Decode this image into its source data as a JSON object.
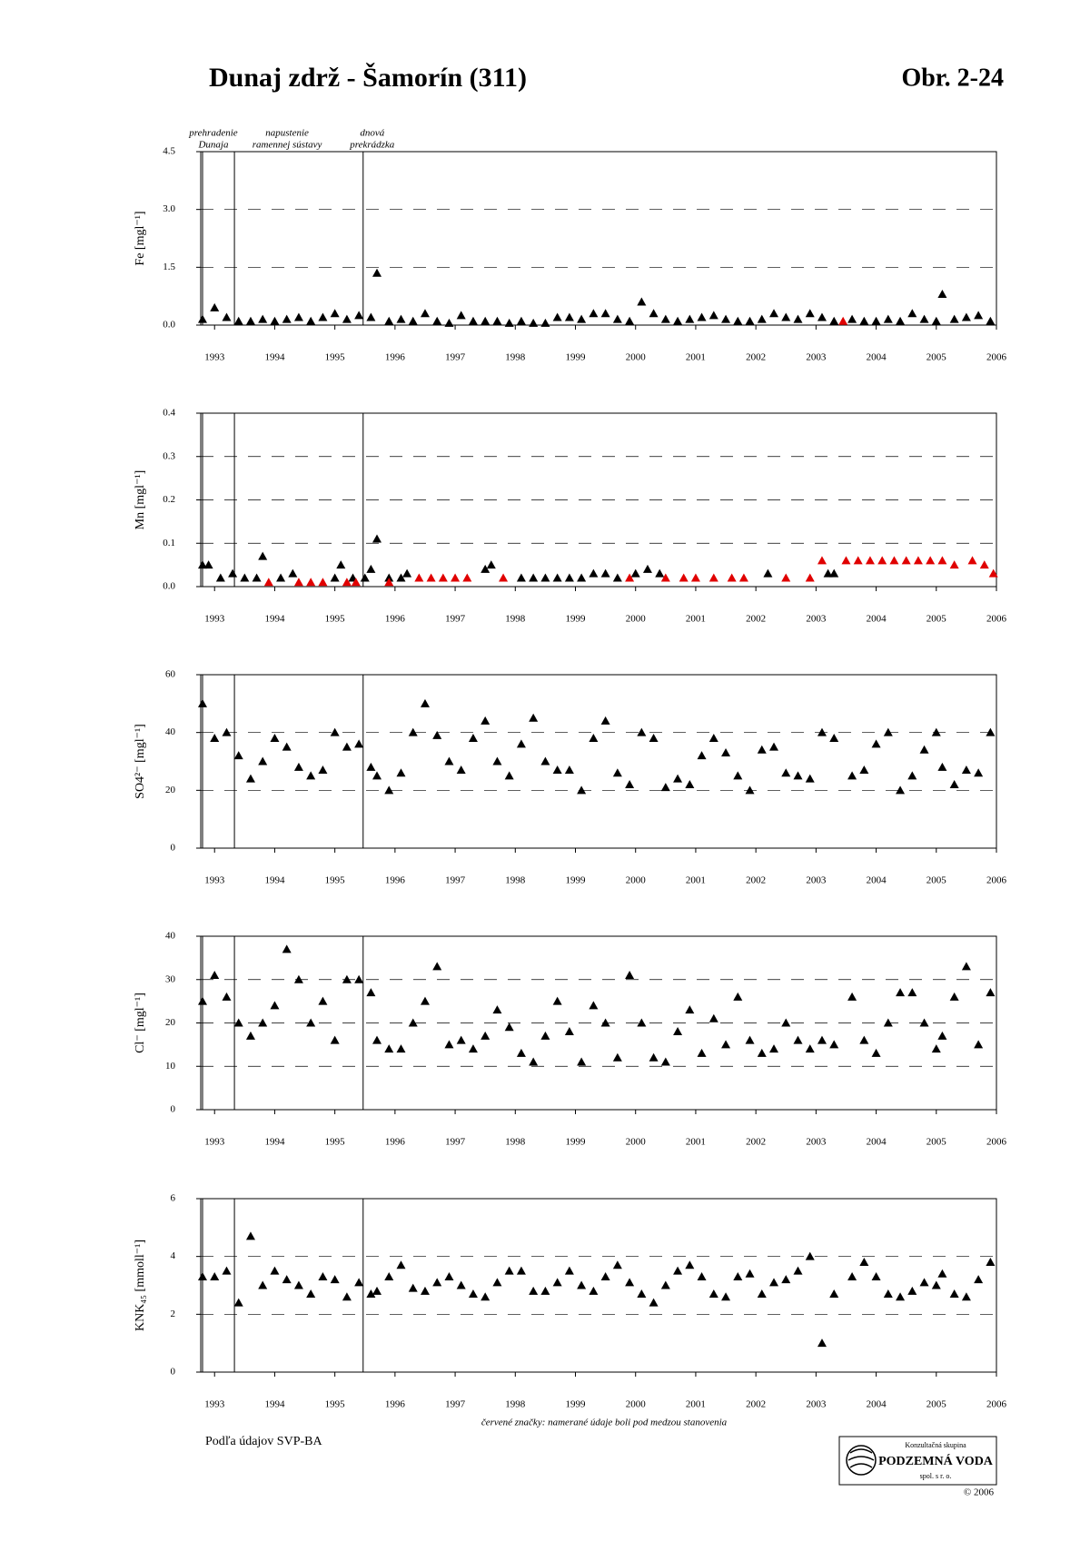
{
  "header": {
    "title": "Dunaj zdrž - Šamorín (311)",
    "figure": "Obr. 2-24"
  },
  "events": [
    {
      "x": 1992.8,
      "lines": [
        "prehradenie",
        "Dunaja"
      ]
    },
    {
      "x": 1993.33,
      "lines": [
        "napustenie",
        "ramennej sústavy"
      ]
    },
    {
      "x": 1995.47,
      "lines": [
        "dnová",
        "prekrádzka"
      ]
    }
  ],
  "chart_data": [
    {
      "type": "scatter",
      "y_label": "Fe [mgl⁻¹]",
      "xlim": [
        1992.77,
        2006
      ],
      "ylim": [
        0,
        4.5
      ],
      "xticks": [
        1993,
        1994,
        1995,
        1996,
        1997,
        1998,
        1999,
        2000,
        2001,
        2002,
        2003,
        2004,
        2005,
        2006
      ],
      "yticks": [
        {
          "value": 0,
          "label": "0.0"
        },
        1.5,
        {
          "value": 3,
          "label": "3.0"
        },
        4.5
      ],
      "grid": true,
      "series": [
        {
          "color": "#000000",
          "x": [
            1992.8,
            1993.0,
            1993.2,
            1993.4,
            1993.6,
            1993.8,
            1994.0,
            1994.2,
            1994.4,
            1994.6,
            1994.8,
            1995.0,
            1995.2,
            1995.4,
            1995.6,
            1995.7,
            1995.9,
            1996.1,
            1996.3,
            1996.5,
            1996.7,
            1996.9,
            1997.1,
            1997.3,
            1997.5,
            1997.7,
            1997.9,
            1998.1,
            1998.3,
            1998.5,
            1998.7,
            1998.9,
            1999.1,
            1999.3,
            1999.5,
            1999.7,
            1999.9,
            2000.1,
            2000.3,
            2000.5,
            2000.7,
            2000.9,
            2001.1,
            2001.3,
            2001.5,
            2001.7,
            2001.9,
            2002.1,
            2002.3,
            2002.5,
            2002.7,
            2002.9,
            2003.1,
            2003.3,
            2003.6,
            2003.8,
            2004.0,
            2004.2,
            2004.4,
            2004.6,
            2004.8,
            2005.0,
            2005.1,
            2005.3,
            2005.5,
            2005.7,
            2005.9
          ],
          "values": [
            0.15,
            0.45,
            0.2,
            0.1,
            0.1,
            0.15,
            0.1,
            0.15,
            0.2,
            0.1,
            0.2,
            0.3,
            0.15,
            0.25,
            0.2,
            1.35,
            0.1,
            0.15,
            0.1,
            0.3,
            0.1,
            0.05,
            0.25,
            0.1,
            0.1,
            0.1,
            0.05,
            0.1,
            0.05,
            0.05,
            0.2,
            0.2,
            0.15,
            0.3,
            0.3,
            0.15,
            0.1,
            0.6,
            0.3,
            0.15,
            0.1,
            0.15,
            0.2,
            0.25,
            0.15,
            0.1,
            0.1,
            0.15,
            0.3,
            0.2,
            0.15,
            0.3,
            0.2,
            0.1,
            0.15,
            0.1,
            0.1,
            0.15,
            0.1,
            0.3,
            0.15,
            0.1,
            0.8,
            0.15,
            0.2,
            0.25,
            0.1
          ]
        },
        {
          "color": "#e00000",
          "x": [
            2003.45
          ],
          "values": [
            0.1
          ]
        }
      ]
    },
    {
      "type": "scatter",
      "y_label": "Mn [mgl⁻¹]",
      "xlim": [
        1992.77,
        2006
      ],
      "ylim": [
        0,
        0.4
      ],
      "xticks": [
        1993,
        1994,
        1995,
        1996,
        1997,
        1998,
        1999,
        2000,
        2001,
        2002,
        2003,
        2004,
        2005,
        2006
      ],
      "yticks": [
        {
          "value": 0,
          "label": "0.0"
        },
        0.1,
        0.2,
        0.3,
        0.4
      ],
      "grid": true,
      "series": [
        {
          "color": "#000000",
          "x": [
            1992.8,
            1992.9,
            1993.1,
            1993.3,
            1993.5,
            1993.7,
            1993.8,
            1994.1,
            1994.3,
            1995.0,
            1995.1,
            1995.3,
            1995.5,
            1995.6,
            1995.7,
            1995.9,
            1996.1,
            1996.2,
            1997.5,
            1997.6,
            1998.1,
            1998.3,
            1998.5,
            1998.7,
            1998.9,
            1999.1,
            1999.3,
            1999.5,
            1999.7,
            2000.0,
            2000.2,
            2000.4,
            2002.2,
            2003.2,
            2003.3
          ],
          "values": [
            0.05,
            0.05,
            0.02,
            0.03,
            0.02,
            0.02,
            0.07,
            0.02,
            0.03,
            0.02,
            0.05,
            0.02,
            0.02,
            0.04,
            0.11,
            0.02,
            0.02,
            0.03,
            0.04,
            0.05,
            0.02,
            0.02,
            0.02,
            0.02,
            0.02,
            0.02,
            0.03,
            0.03,
            0.02,
            0.03,
            0.04,
            0.03,
            0.03,
            0.03,
            0.03
          ]
        },
        {
          "color": "#e00000",
          "x": [
            1993.9,
            1994.4,
            1994.6,
            1994.8,
            1995.2,
            1995.35,
            1995.9,
            1996.4,
            1996.6,
            1996.8,
            1997.0,
            1997.2,
            1997.8,
            1999.9,
            2000.5,
            2000.8,
            2001.0,
            2001.3,
            2001.6,
            2001.8,
            2002.5,
            2002.9,
            2003.1,
            2003.5,
            2003.7,
            2003.9,
            2004.1,
            2004.3,
            2004.5,
            2004.7,
            2004.9,
            2005.1,
            2005.3,
            2005.6,
            2005.8,
            2005.95
          ],
          "values": [
            0.01,
            0.01,
            0.01,
            0.01,
            0.01,
            0.01,
            0.01,
            0.02,
            0.02,
            0.02,
            0.02,
            0.02,
            0.02,
            0.02,
            0.02,
            0.02,
            0.02,
            0.02,
            0.02,
            0.02,
            0.02,
            0.02,
            0.06,
            0.06,
            0.06,
            0.06,
            0.06,
            0.06,
            0.06,
            0.06,
            0.06,
            0.06,
            0.05,
            0.06,
            0.05,
            0.03
          ]
        }
      ]
    },
    {
      "type": "scatter",
      "y_label": "SO4²⁻ [mgl⁻¹]",
      "xlim": [
        1992.77,
        2006
      ],
      "ylim": [
        0,
        60
      ],
      "xticks": [
        1993,
        1994,
        1995,
        1996,
        1997,
        1998,
        1999,
        2000,
        2001,
        2002,
        2003,
        2004,
        2005,
        2006
      ],
      "yticks": [
        0,
        20,
        40,
        60
      ],
      "grid": true,
      "series": [
        {
          "color": "#000000",
          "x": [
            1992.8,
            1993.0,
            1993.2,
            1993.4,
            1993.6,
            1993.8,
            1994.0,
            1994.2,
            1994.4,
            1994.6,
            1994.8,
            1995.0,
            1995.2,
            1995.4,
            1995.6,
            1995.7,
            1995.9,
            1996.1,
            1996.3,
            1996.5,
            1996.7,
            1996.9,
            1997.1,
            1997.3,
            1997.5,
            1997.7,
            1997.9,
            1998.1,
            1998.3,
            1998.5,
            1998.7,
            1998.9,
            1999.1,
            1999.3,
            1999.5,
            1999.7,
            1999.9,
            2000.1,
            2000.3,
            2000.5,
            2000.7,
            2000.9,
            2001.1,
            2001.3,
            2001.5,
            2001.7,
            2001.9,
            2002.1,
            2002.3,
            2002.5,
            2002.7,
            2002.9,
            2003.1,
            2003.3,
            2003.6,
            2003.8,
            2004.0,
            2004.2,
            2004.4,
            2004.6,
            2004.8,
            2005.0,
            2005.1,
            2005.3,
            2005.5,
            2005.7,
            2005.9
          ],
          "values": [
            50,
            38,
            40,
            32,
            24,
            30,
            38,
            35,
            28,
            25,
            27,
            40,
            35,
            36,
            28,
            25,
            20,
            26,
            40,
            50,
            39,
            30,
            27,
            38,
            44,
            30,
            25,
            36,
            45,
            30,
            27,
            27,
            20,
            38,
            44,
            26,
            22,
            40,
            38,
            21,
            24,
            22,
            32,
            38,
            33,
            25,
            20,
            34,
            35,
            26,
            25,
            24,
            40,
            38,
            25,
            27,
            36,
            40,
            20,
            25,
            34,
            40,
            28,
            22,
            27,
            26,
            40
          ]
        }
      ]
    },
    {
      "type": "scatter",
      "y_label": "Cl⁻ [mgl⁻¹]",
      "xlim": [
        1992.77,
        2006
      ],
      "ylim": [
        0,
        40
      ],
      "xticks": [
        1993,
        1994,
        1995,
        1996,
        1997,
        1998,
        1999,
        2000,
        2001,
        2002,
        2003,
        2004,
        2005,
        2006
      ],
      "yticks": [
        0,
        10,
        20,
        30,
        40
      ],
      "grid": true,
      "series": [
        {
          "color": "#000000",
          "x": [
            1992.8,
            1993.0,
            1993.2,
            1993.4,
            1993.6,
            1993.8,
            1994.0,
            1994.2,
            1994.4,
            1994.6,
            1994.8,
            1995.0,
            1995.2,
            1995.4,
            1995.6,
            1995.7,
            1995.9,
            1996.1,
            1996.3,
            1996.5,
            1996.7,
            1996.9,
            1997.1,
            1997.3,
            1997.5,
            1997.7,
            1997.9,
            1998.1,
            1998.3,
            1998.5,
            1998.7,
            1998.9,
            1999.1,
            1999.3,
            1999.5,
            1999.7,
            1999.9,
            2000.1,
            2000.3,
            2000.5,
            2000.7,
            2000.9,
            2001.1,
            2001.3,
            2001.5,
            2001.7,
            2001.9,
            2002.1,
            2002.3,
            2002.5,
            2002.7,
            2002.9,
            2003.1,
            2003.3,
            2003.6,
            2003.8,
            2004.0,
            2004.2,
            2004.4,
            2004.6,
            2004.8,
            2005.0,
            2005.1,
            2005.3,
            2005.5,
            2005.7,
            2005.9
          ],
          "values": [
            25,
            31,
            26,
            20,
            17,
            20,
            24,
            37,
            30,
            20,
            25,
            16,
            30,
            30,
            27,
            16,
            14,
            14,
            20,
            25,
            33,
            15,
            16,
            14,
            17,
            23,
            19,
            13,
            11,
            17,
            25,
            18,
            11,
            24,
            20,
            12,
            31,
            20,
            12,
            11,
            18,
            23,
            13,
            21,
            15,
            26,
            16,
            13,
            14,
            20,
            16,
            14,
            16,
            15,
            26,
            16,
            13,
            20,
            27,
            27,
            20,
            14,
            17,
            26,
            33,
            15,
            27
          ]
        }
      ]
    },
    {
      "type": "scatter",
      "y_label": "KNK₄₅ [mmoll⁻¹]",
      "xlim": [
        1992.77,
        2006
      ],
      "ylim": [
        0,
        6
      ],
      "xticks": [
        1993,
        1994,
        1995,
        1996,
        1997,
        1998,
        1999,
        2000,
        2001,
        2002,
        2003,
        2004,
        2005,
        2006
      ],
      "yticks": [
        0,
        2,
        4,
        6
      ],
      "grid": true,
      "series": [
        {
          "color": "#000000",
          "x": [
            1992.8,
            1993.0,
            1993.2,
            1993.4,
            1993.6,
            1993.8,
            1994.0,
            1994.2,
            1994.4,
            1994.6,
            1994.8,
            1995.0,
            1995.2,
            1995.4,
            1995.6,
            1995.7,
            1995.9,
            1996.1,
            1996.3,
            1996.5,
            1996.7,
            1996.9,
            1997.1,
            1997.3,
            1997.5,
            1997.7,
            1997.9,
            1998.1,
            1998.3,
            1998.5,
            1998.7,
            1998.9,
            1999.1,
            1999.3,
            1999.5,
            1999.7,
            1999.9,
            2000.1,
            2000.3,
            2000.5,
            2000.7,
            2000.9,
            2001.1,
            2001.3,
            2001.5,
            2001.7,
            2001.9,
            2002.1,
            2002.3,
            2002.5,
            2002.7,
            2002.9,
            2003.1,
            2003.3,
            2003.6,
            2003.8,
            2004.0,
            2004.2,
            2004.4,
            2004.6,
            2004.8,
            2005.0,
            2005.1,
            2005.3,
            2005.5,
            2005.7,
            2005.9
          ],
          "values": [
            3.3,
            3.3,
            3.5,
            2.4,
            4.7,
            3.0,
            3.5,
            3.2,
            3.0,
            2.7,
            3.3,
            3.2,
            2.6,
            3.1,
            2.7,
            2.8,
            3.3,
            3.7,
            2.9,
            2.8,
            3.1,
            3.3,
            3.0,
            2.7,
            2.6,
            3.1,
            3.5,
            3.5,
            2.8,
            2.8,
            3.1,
            3.5,
            3.0,
            2.8,
            3.3,
            3.7,
            3.1,
            2.7,
            2.4,
            3.0,
            3.5,
            3.7,
            3.3,
            2.7,
            2.6,
            3.3,
            3.4,
            2.7,
            3.1,
            3.2,
            3.5,
            4.0,
            1.0,
            2.7,
            3.3,
            3.8,
            3.3,
            2.7,
            2.6,
            2.8,
            3.1,
            3.0,
            3.4,
            2.7,
            2.6,
            3.2,
            3.8
          ]
        }
      ]
    }
  ],
  "note": "červené značky: namerané údaje boli pod medzou stanovenia",
  "source": "Podľa údajov SVP-BA",
  "logo": {
    "line1": "Konzultačná skupina",
    "line2": "PODZEMNÁ VODA",
    "line3": "spol. s r. o.",
    "copyright": "© 2006"
  }
}
